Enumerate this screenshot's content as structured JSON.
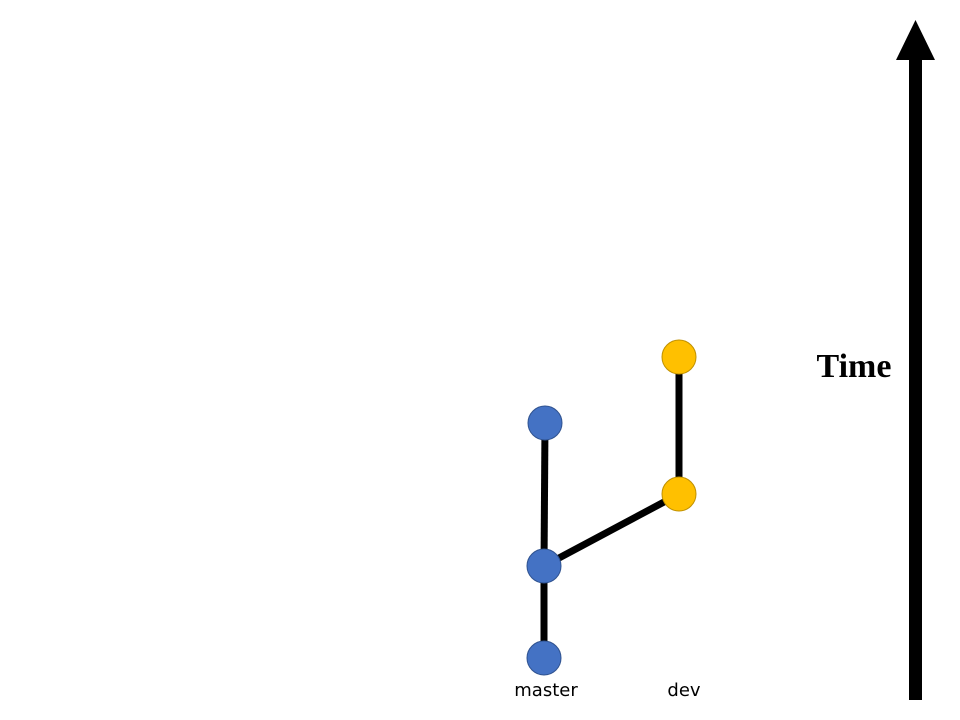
{
  "branches": {
    "master": {
      "label": "master",
      "color": "#4472C4",
      "stroke": "#2F528F"
    },
    "dev": {
      "label": "dev",
      "color": "#FFC000",
      "stroke": "#BF9000"
    }
  },
  "commits": [
    {
      "id": "m1",
      "branch": "master"
    },
    {
      "id": "m2",
      "branch": "master"
    },
    {
      "id": "m3",
      "branch": "master"
    },
    {
      "id": "d1",
      "branch": "dev"
    },
    {
      "id": "d2",
      "branch": "dev"
    }
  ],
  "edges": [
    {
      "from": "m1",
      "to": "m2"
    },
    {
      "from": "m2",
      "to": "m3"
    },
    {
      "from": "m2",
      "to": "d1"
    },
    {
      "from": "d1",
      "to": "d2"
    }
  ],
  "time_axis": {
    "label": "Time",
    "color": "#000000"
  }
}
